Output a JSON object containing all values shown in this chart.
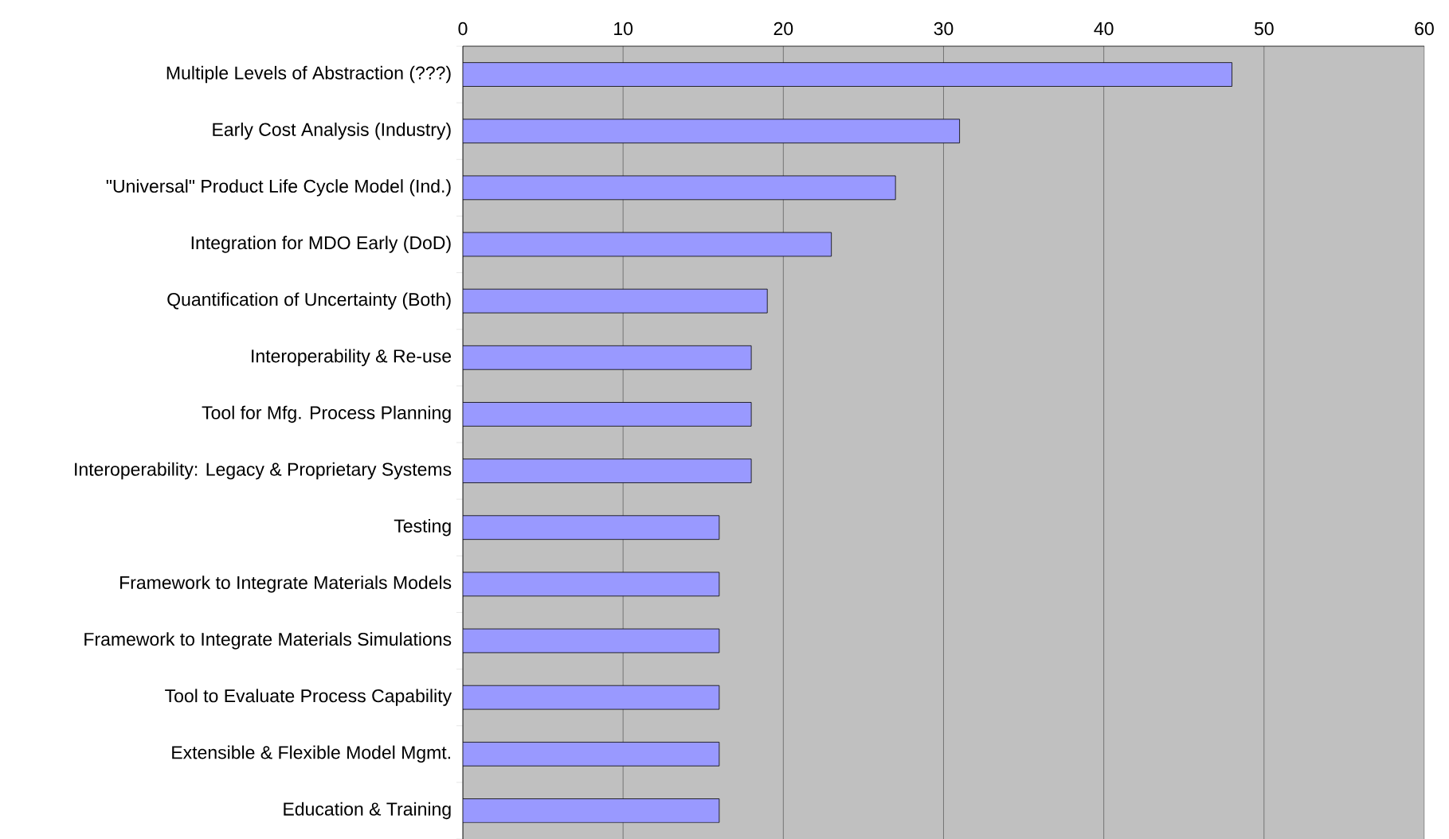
{
  "chart_data": {
    "type": "bar",
    "orientation": "horizontal",
    "categories": [
      "Multiple Levels of Abstraction (???)",
      "Early Cost Analysis (Industry)",
      "\"Universal\" Product Life Cycle Model (Ind.)",
      "Integration for MDO Early (DoD)",
      "Quantification of Uncertainty (Both)",
      "Interoperability & Re-use",
      "Tool for Mfg. Process Planning",
      "Interoperability: Legacy & Proprietary Systems",
      "Testing",
      "Framework to Integrate Materials Models",
      "Framework to Integrate Materials Simulations",
      "Tool to Evaluate Process Capability",
      "Extensible & Flexible Model Mgmt.",
      "Education & Training"
    ],
    "values": [
      48,
      31,
      27,
      23,
      19,
      18,
      18,
      18,
      16,
      16,
      16,
      16,
      16,
      16
    ],
    "color": "#9999ff",
    "xlim": [
      0,
      60
    ],
    "xticks": [
      0,
      10,
      20,
      30,
      40,
      50,
      60
    ],
    "grid": "x"
  }
}
